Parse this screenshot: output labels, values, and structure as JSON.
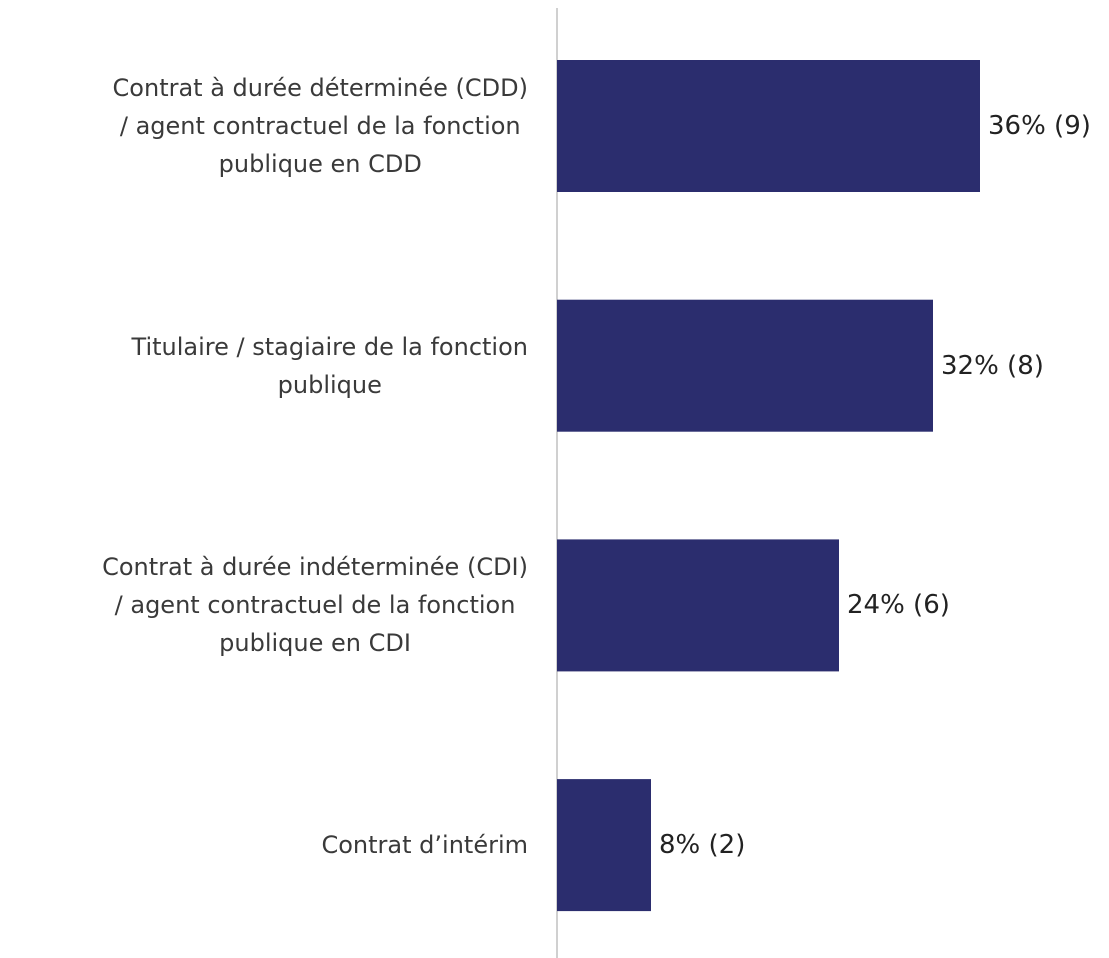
{
  "chart_data": {
    "type": "bar",
    "orientation": "horizontal",
    "categories": [
      "Contrat à durée déterminée (CDD)\n/ agent contractuel de la fonction\npublique en CDD",
      "Titulaire / stagiaire de la fonction\npublique",
      "Contrat à durée indéterminée (CDI)\n/ agent contractuel de la fonction\npublique en CDI",
      "Contrat d’intérim"
    ],
    "values": [
      36,
      32,
      24,
      8
    ],
    "value_labels": [
      "36% (9)",
      "32% (8)",
      "24% (6)",
      "8% (2)"
    ],
    "color": "#2b2d6e"
  }
}
